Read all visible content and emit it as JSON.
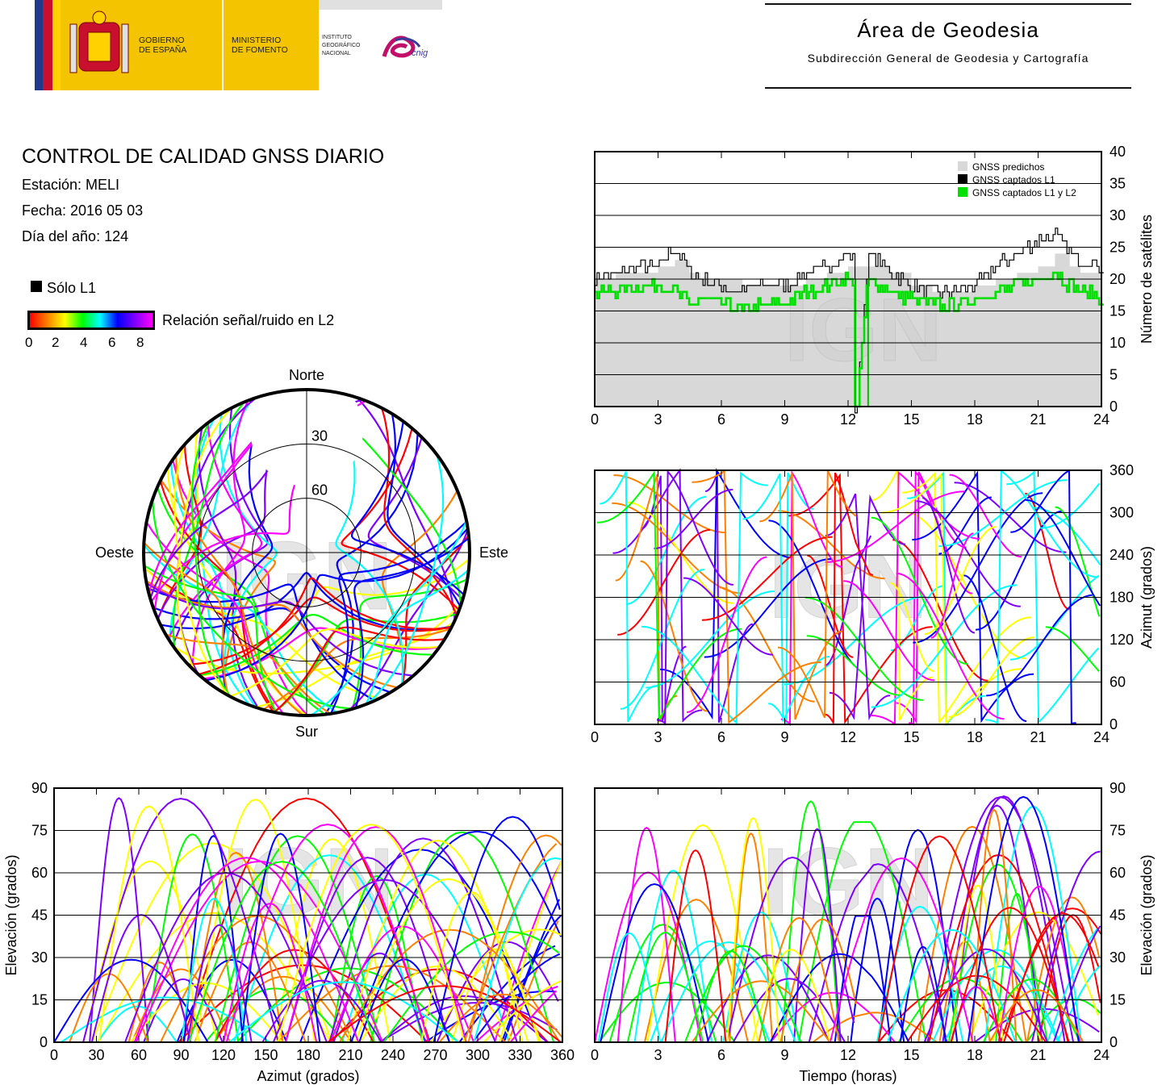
{
  "header": {
    "gov_label": "GOBIERNO\nDE ESPAÑA",
    "ministry_label": "MINISTERIO\nDE FOMENTO",
    "institute_label": "INSTITUTO\nGEOGRÁFICO\nNACIONAL",
    "cnig_label": "cnig",
    "area_title": "Área de Geodesia",
    "area_subtitle": "Subdirección General de Geodesia y Cartografía"
  },
  "report": {
    "title": "CONTROL DE CALIDAD GNSS DIARIO",
    "station": "Estación: MELI",
    "date": "Fecha: 2016 05 03",
    "doy": "Día del año: 124"
  },
  "legend": {
    "l1_only": "Sólo L1",
    "snr_label": "Relación señal/ruido en L2",
    "snr_ticks": [
      "0",
      "2",
      "4",
      "6",
      "8"
    ],
    "colors": [
      "#ff0000",
      "#ff8000",
      "#ffff00",
      "#00ff00",
      "#00ffff",
      "#0000ff",
      "#8000ff",
      "#ff00ff"
    ]
  },
  "watermark": "IGN",
  "chart_data": [
    {
      "type": "polar",
      "id": "skyplot",
      "labels": {
        "north": "Norte",
        "south": "Sur",
        "east": "Este",
        "west": "Oeste"
      },
      "ring_labels": [
        "30",
        "60"
      ],
      "elevation_rings": [
        30,
        60
      ]
    },
    {
      "type": "line",
      "id": "satellite-count",
      "ylabel": "Número de satélites",
      "xlim": [
        0,
        24
      ],
      "ylim": [
        0,
        40
      ],
      "xticks": [
        "0",
        "3",
        "6",
        "9",
        "12",
        "15",
        "18",
        "21",
        "24"
      ],
      "yticks": [
        "0",
        "5",
        "10",
        "15",
        "20",
        "25",
        "30",
        "35",
        "40"
      ],
      "legend": [
        "GNSS predichos",
        "GNSS captados L1",
        "GNSS captados L1 y L2"
      ],
      "series_colors": [
        "#d8d8d8",
        "#000000",
        "#00e000"
      ],
      "x": [
        0,
        1,
        2,
        3,
        3.8,
        4.5,
        5,
        6,
        7,
        8,
        9,
        10,
        11,
        12,
        12.3,
        12.4,
        12.9,
        13,
        14,
        15,
        16,
        17,
        18,
        19,
        20,
        21,
        21.8,
        22.5,
        23,
        24
      ],
      "predicted": [
        20,
        21,
        21,
        22,
        23,
        21,
        20,
        20,
        19,
        19,
        19,
        20,
        21,
        22,
        22,
        22,
        22,
        22,
        21,
        19,
        18,
        18,
        19,
        20,
        21,
        22,
        24,
        22,
        21,
        20
      ],
      "l1": [
        20,
        21,
        22,
        22,
        25,
        21,
        20,
        19,
        18,
        19,
        19,
        21,
        22,
        24,
        23,
        0,
        22,
        24,
        21,
        19,
        18,
        18,
        19,
        22,
        24,
        26,
        27,
        24,
        23,
        22
      ],
      "l1_l2": [
        18,
        18,
        19,
        19,
        18,
        16,
        17,
        16,
        15,
        16,
        16,
        18,
        19,
        20,
        19,
        0,
        19,
        20,
        18,
        17,
        16,
        16,
        17,
        18,
        19,
        20,
        21,
        19,
        18,
        17
      ]
    },
    {
      "type": "scatter",
      "id": "azimuth-time",
      "ylabel": "Azimut (grados)",
      "xlim": [
        0,
        24
      ],
      "ylim": [
        0,
        360
      ],
      "xticks": [
        "0",
        "3",
        "6",
        "9",
        "12",
        "15",
        "18",
        "21",
        "24"
      ],
      "yticks": [
        "0",
        "60",
        "120",
        "180",
        "240",
        "300",
        "360"
      ]
    },
    {
      "type": "scatter",
      "id": "elevation-azimuth",
      "xlabel": "Azimut (grados)",
      "ylabel": "Elevación (grados)",
      "xlim": [
        0,
        360
      ],
      "ylim": [
        0,
        90
      ],
      "xticks": [
        "0",
        "30",
        "60",
        "90",
        "120",
        "150",
        "180",
        "210",
        "240",
        "270",
        "300",
        "330",
        "360"
      ],
      "yticks": [
        "0",
        "15",
        "30",
        "45",
        "60",
        "75",
        "90"
      ]
    },
    {
      "type": "scatter",
      "id": "elevation-time",
      "xlabel": "Tiempo (horas)",
      "ylabel": "Elevación (grados)",
      "xlim": [
        0,
        24
      ],
      "ylim": [
        0,
        90
      ],
      "xticks": [
        "0",
        "3",
        "6",
        "9",
        "12",
        "15",
        "18",
        "21",
        "24"
      ],
      "yticks": [
        "0",
        "15",
        "30",
        "45",
        "60",
        "75",
        "90"
      ]
    }
  ]
}
